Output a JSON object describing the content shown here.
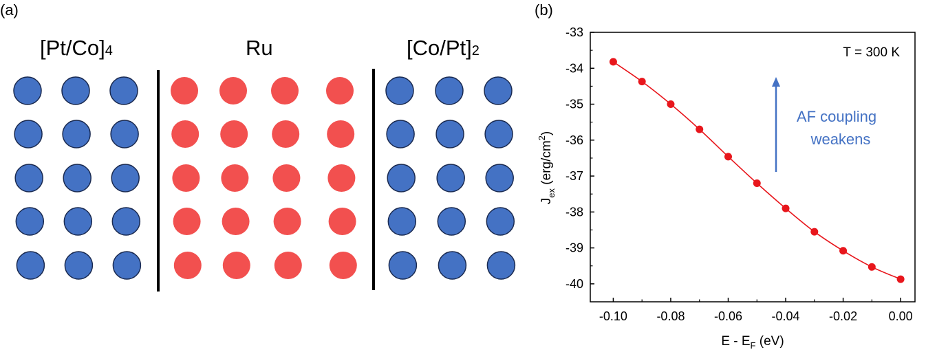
{
  "panel_a": {
    "label": "(a)",
    "layers": [
      {
        "name": "[Pt/Co]",
        "subscript": "4",
        "columns": 3,
        "rows": 5,
        "color": "#4472C4"
      },
      {
        "name": "Ru",
        "subscript": "",
        "columns": 4,
        "rows": 5,
        "color": "#F2504F"
      },
      {
        "name": "[Co/Pt]",
        "subscript": "2",
        "columns": 3,
        "rows": 5,
        "color": "#4472C4"
      }
    ],
    "atom_outline_color": "#1a2a50"
  },
  "panel_b": {
    "label": "(b)"
  },
  "chart_data": {
    "type": "line",
    "x": [
      -0.1,
      -0.09,
      -0.08,
      -0.07,
      -0.06,
      -0.05,
      -0.04,
      -0.03,
      -0.02,
      -0.01,
      0.0
    ],
    "series": [
      {
        "values": [
          -33.82,
          -34.37,
          -35.0,
          -35.7,
          -36.46,
          -37.2,
          -37.9,
          -38.55,
          -39.08,
          -39.53,
          -39.87
        ],
        "color": "#E8161C"
      }
    ],
    "xlabel_main": "E - E",
    "xlabel_sub": "F",
    "xlabel_tail": " (eV)",
    "ylabel_main": "J",
    "ylabel_sub": "ex",
    "ylabel_tail": " (erg/cm",
    "ylabel_sup": "2",
    "ylabel_close": ")",
    "xlim": [
      -0.108,
      0.005
    ],
    "ylim": [
      -40.5,
      -33
    ],
    "xticks": [
      -0.1,
      -0.08,
      -0.06,
      -0.04,
      -0.02,
      0.0
    ],
    "xtick_labels": [
      "-0.10",
      "-0.08",
      "-0.06",
      "-0.04",
      "-0.02",
      "0.00"
    ],
    "yticks": [
      -33,
      -34,
      -35,
      -36,
      -37,
      -38,
      -39,
      -40
    ],
    "ytick_labels": [
      "-33",
      "-34",
      "-35",
      "-36",
      "-37",
      "-38",
      "-39",
      "-40"
    ],
    "annotation_lines": [
      "AF coupling",
      "weakens"
    ],
    "annotation_color": "#4472C4",
    "temperature_label": "T = 300 K",
    "grid": false
  }
}
